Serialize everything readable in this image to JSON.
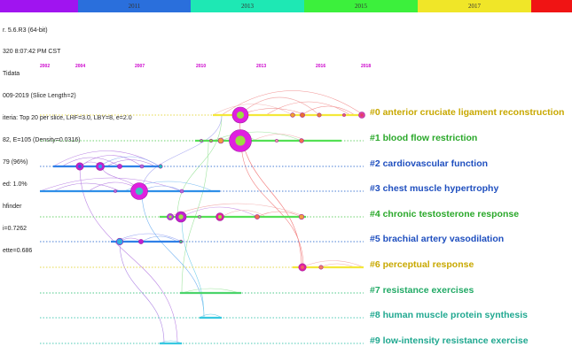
{
  "timebar": [
    {
      "label": "",
      "color": "#a014f0"
    },
    {
      "label": "2011",
      "color": "#2a6fdc"
    },
    {
      "label": "2013",
      "color": "#1ee8b4"
    },
    {
      "label": "2015",
      "color": "#3cf03c"
    },
    {
      "label": "2017",
      "color": "#f0e628"
    },
    {
      "label": "",
      "color": "#f01414"
    }
  ],
  "info_lines": [
    "r. 5.6.R3 (64-bit)",
    "320 8:07:42 PM CST",
    "Tidata",
    "009-2019 (Slice Length=2)",
    "iteria: Top 20 per slice, LRF=3.0, LBY=8, e=2.0",
    "82, E=105 (Density=0.0316)",
    "79 (96%)",
    "ed: 1.0%",
    "hfinder",
    "i=0.7262",
    "ette=0.686"
  ],
  "timeline_years": [
    "2002",
    "2004",
    "2007",
    "2010",
    "2013",
    "2016",
    "2018"
  ],
  "clusters": [
    {
      "label": "#0 anterior cruciate ligament reconstruction",
      "color": "#c8a800"
    },
    {
      "label": "#1 blood flow restriction",
      "color": "#2aa82a"
    },
    {
      "label": "#2 cardiovascular function",
      "color": "#1f4fbf"
    },
    {
      "label": "#3 chest muscle hypertrophy",
      "color": "#1f4fbf"
    },
    {
      "label": "#4 chronic testosterone response",
      "color": "#2aa82a"
    },
    {
      "label": "#5 brachial artery vasodilation",
      "color": "#1f4fbf"
    },
    {
      "label": "#6 perceptual response",
      "color": "#c8a800"
    },
    {
      "label": "#7 resistance exercises",
      "color": "#22aa66"
    },
    {
      "label": "#8 human muscle protein synthesis",
      "color": "#20a890"
    },
    {
      "label": "#9 low-intensity resistance exercise",
      "color": "#20a890"
    }
  ]
}
